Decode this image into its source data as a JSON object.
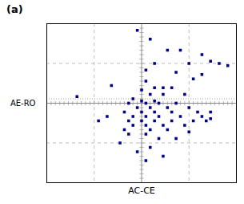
{
  "chart_data": {
    "type": "scatter",
    "title": "(a)",
    "xlabel": "AC-CE",
    "ylabel": "AE-RO",
    "x": [
      -2,
      4,
      12,
      18,
      28,
      32,
      6,
      22,
      36,
      40,
      2,
      16,
      28,
      24,
      2,
      -14,
      6,
      10,
      14,
      0,
      4,
      10,
      20,
      -30,
      -4,
      0,
      6,
      -6,
      2,
      8,
      16,
      -2,
      4,
      12,
      22,
      -8,
      0,
      6,
      14,
      26,
      32,
      -16,
      -4,
      2,
      8,
      18,
      28,
      32,
      -20,
      -6,
      0,
      6,
      14,
      24,
      30,
      -4,
      2,
      10,
      20,
      -8,
      4,
      12,
      22,
      -6,
      2,
      8,
      16,
      -10,
      4,
      -2,
      10,
      2
    ],
    "y": [
      33,
      29,
      24,
      24,
      22,
      19,
      18,
      18,
      18,
      17,
      15,
      14,
      13,
      11,
      10,
      8,
      7,
      7,
      7,
      6,
      4,
      4,
      4,
      3,
      2,
      1,
      1,
      0,
      0,
      0,
      0,
      -2,
      -2,
      -2,
      -2,
      -4,
      -4,
      -4,
      -4,
      -4,
      -4,
      -6,
      -6,
      -6,
      -6,
      -6,
      -6,
      -7,
      -8,
      -8,
      -8,
      -8,
      -8,
      -8,
      -8,
      -10,
      -10,
      -10,
      -10,
      -12,
      -12,
      -12,
      -13,
      -14,
      -14,
      -16,
      -16,
      -18,
      -20,
      -22,
      -24,
      -26
    ],
    "color": "#00008B",
    "marker": "square",
    "xlim": [
      -44,
      44
    ],
    "ylim": [
      -36,
      36
    ],
    "xticks": [
      -44,
      -42,
      -40,
      -38,
      -36,
      -34,
      -32,
      -30,
      -28,
      -26,
      -24,
      -22,
      -20,
      -18,
      -16,
      -14,
      -12,
      -10,
      -8,
      -6,
      -4,
      -2,
      0,
      2,
      4,
      6,
      8,
      10,
      12,
      14,
      16,
      18,
      20,
      22,
      24,
      26,
      28,
      30,
      32,
      34,
      36,
      38,
      40,
      42,
      44
    ],
    "yticks": [
      -36,
      -34,
      -32,
      -30,
      -28,
      -26,
      -24,
      -22,
      -20,
      -18,
      -16,
      -14,
      -12,
      -10,
      -8,
      -6,
      -4,
      -2,
      0,
      2,
      4,
      6,
      8,
      10,
      12,
      14,
      16,
      18,
      20,
      22,
      24,
      26,
      28,
      30,
      32,
      34,
      36
    ],
    "tick_labels": false,
    "vlines": [
      {
        "value": -22,
        "line_style": "dashed",
        "color": "#aaaaaa"
      },
      {
        "value": 22,
        "line_style": "dashed",
        "color": "#aaaaaa"
      },
      {
        "value": 0,
        "line_style": "solid",
        "color": "#888888"
      }
    ],
    "hlines": [
      {
        "value": -18,
        "line_style": "dashed",
        "color": "#aaaaaa"
      },
      {
        "value": 18,
        "line_style": "dashed",
        "color": "#aaaaaa"
      },
      {
        "value": 0,
        "line_style": "solid",
        "color": "#888888"
      },
      {
        "value": 2,
        "line_style": "dotted",
        "color": "#888888"
      }
    ]
  }
}
